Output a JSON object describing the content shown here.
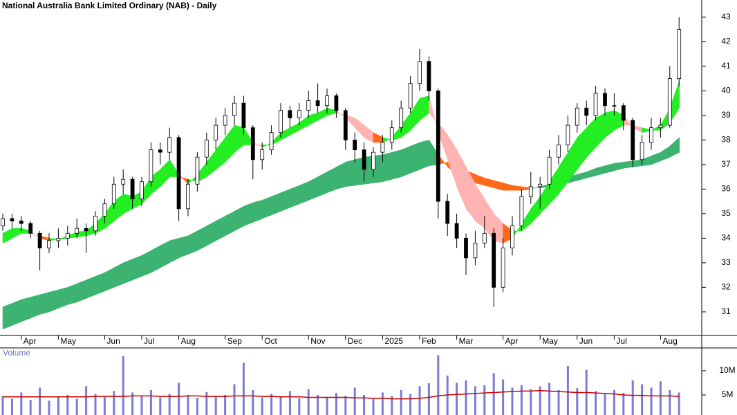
{
  "chart_data": [
    {
      "type": "candlestick",
      "title": "National Australia Bank Limited Ordinary (NAB) - Daily",
      "categories": [
        null,
        null,
        "Apr",
        null,
        null,
        null,
        "May",
        null,
        null,
        null,
        null,
        "Jun",
        null,
        null,
        null,
        "Jul",
        null,
        null,
        null,
        "Aug",
        null,
        null,
        null,
        null,
        "Sep",
        null,
        null,
        null,
        "Oct",
        null,
        null,
        null,
        null,
        "Nov",
        null,
        null,
        null,
        "Dec",
        null,
        null,
        null,
        "2025",
        null,
        null,
        null,
        "Feb",
        null,
        null,
        null,
        "Mar",
        null,
        null,
        null,
        null,
        "Apr",
        null,
        null,
        null,
        "May",
        null,
        null,
        null,
        "Jun",
        null,
        null,
        null,
        "Jul",
        null,
        null,
        null,
        null,
        "Aug",
        null,
        null
      ],
      "ohlc": [
        [
          34.5,
          35.0,
          34.3,
          34.8
        ],
        [
          34.8,
          35.0,
          34.4,
          34.7
        ],
        [
          34.7,
          34.9,
          34.3,
          34.6
        ],
        [
          34.6,
          34.7,
          34.0,
          34.2
        ],
        [
          34.2,
          34.3,
          32.7,
          33.6
        ],
        [
          33.6,
          34.2,
          33.4,
          33.9
        ],
        [
          33.9,
          34.4,
          33.6,
          34.0
        ],
        [
          34.0,
          34.5,
          33.7,
          34.2
        ],
        [
          34.2,
          34.8,
          34.0,
          34.4
        ],
        [
          34.4,
          34.6,
          33.4,
          34.3
        ],
        [
          34.3,
          35.1,
          34.1,
          34.9
        ],
        [
          34.9,
          35.6,
          34.6,
          35.4
        ],
        [
          35.4,
          36.5,
          35.2,
          36.2
        ],
        [
          36.2,
          36.8,
          35.8,
          36.4
        ],
        [
          36.4,
          36.5,
          35.2,
          35.6
        ],
        [
          35.6,
          36.5,
          35.3,
          36.3
        ],
        [
          36.3,
          37.9,
          36.1,
          37.6
        ],
        [
          37.6,
          37.9,
          37.0,
          37.5
        ],
        [
          37.5,
          38.5,
          37.2,
          38.1
        ],
        [
          38.1,
          38.2,
          34.7,
          35.2
        ],
        [
          35.2,
          36.4,
          34.9,
          36.2
        ],
        [
          36.2,
          37.5,
          35.9,
          37.3
        ],
        [
          37.3,
          38.3,
          37.0,
          38.0
        ],
        [
          38.0,
          38.9,
          37.6,
          38.6
        ],
        [
          38.6,
          39.3,
          38.2,
          39.0
        ],
        [
          39.0,
          39.8,
          38.6,
          39.5
        ],
        [
          39.5,
          39.8,
          38.2,
          38.5
        ],
        [
          38.5,
          38.6,
          36.4,
          37.2
        ],
        [
          37.2,
          37.9,
          36.8,
          37.6
        ],
        [
          37.6,
          38.6,
          37.4,
          38.3
        ],
        [
          38.3,
          39.5,
          38.1,
          39.2
        ],
        [
          39.2,
          39.4,
          38.5,
          38.9
        ],
        [
          38.9,
          39.5,
          38.6,
          39.2
        ],
        [
          39.2,
          40.0,
          38.9,
          39.6
        ],
        [
          39.6,
          40.3,
          39.1,
          39.4
        ],
        [
          39.4,
          40.1,
          39.1,
          39.8
        ],
        [
          39.8,
          39.9,
          38.9,
          39.2
        ],
        [
          39.2,
          39.3,
          37.6,
          38.0
        ],
        [
          38.0,
          38.3,
          37.1,
          37.6
        ],
        [
          37.6,
          37.9,
          36.3,
          36.8
        ],
        [
          36.8,
          37.7,
          36.5,
          37.5
        ],
        [
          37.5,
          38.2,
          37.1,
          37.9
        ],
        [
          37.9,
          38.8,
          37.6,
          38.5
        ],
        [
          38.5,
          39.6,
          38.3,
          39.3
        ],
        [
          39.3,
          40.6,
          39.1,
          40.3
        ],
        [
          40.3,
          41.7,
          40.0,
          41.2
        ],
        [
          41.2,
          41.4,
          39.6,
          40.0
        ],
        [
          40.0,
          40.1,
          34.8,
          35.5
        ],
        [
          35.5,
          35.8,
          34.1,
          34.6
        ],
        [
          34.6,
          35.0,
          33.6,
          34.0
        ],
        [
          34.0,
          34.2,
          32.5,
          33.2
        ],
        [
          33.2,
          34.3,
          32.9,
          33.8
        ],
        [
          33.8,
          34.9,
          33.6,
          34.2
        ],
        [
          34.2,
          34.4,
          31.2,
          32.0
        ],
        [
          32.0,
          34.0,
          31.8,
          33.6
        ],
        [
          33.6,
          34.9,
          33.3,
          34.5
        ],
        [
          34.5,
          36.0,
          34.3,
          35.7
        ],
        [
          35.7,
          36.7,
          35.4,
          36.1
        ],
        [
          36.1,
          36.5,
          35.2,
          36.2
        ],
        [
          36.2,
          37.6,
          36.0,
          37.3
        ],
        [
          37.3,
          38.2,
          37.0,
          37.8
        ],
        [
          37.8,
          39.0,
          37.5,
          38.6
        ],
        [
          38.6,
          39.5,
          38.3,
          39.3
        ],
        [
          39.3,
          39.6,
          38.6,
          39.0
        ],
        [
          39.0,
          40.2,
          38.8,
          39.9
        ],
        [
          39.9,
          40.1,
          39.0,
          39.4
        ],
        [
          39.4,
          39.9,
          39.0,
          39.4
        ],
        [
          39.4,
          39.5,
          38.4,
          38.8
        ],
        [
          38.8,
          38.9,
          36.9,
          37.2
        ],
        [
          37.2,
          38.2,
          37.0,
          37.9
        ],
        [
          37.9,
          38.9,
          37.6,
          38.5
        ],
        [
          38.5,
          38.9,
          38.1,
          38.6
        ],
        [
          38.6,
          41.0,
          38.5,
          40.5
        ],
        [
          40.5,
          43.0,
          40.2,
          42.5
        ]
      ],
      "bands": [
        {
          "fast": [
            31.2,
            31.35,
            31.5,
            31.6,
            31.7,
            31.8,
            31.9,
            32.0,
            32.15,
            32.3,
            32.45,
            32.6,
            32.8,
            33.0,
            33.15,
            33.3,
            33.5,
            33.7,
            33.9,
            34.0,
            34.1,
            34.3,
            34.5,
            34.7,
            34.9,
            35.1,
            35.3,
            35.45,
            35.55,
            35.7,
            35.85,
            36.0,
            36.15,
            36.3,
            36.5,
            36.7,
            36.9,
            37.1,
            37.2,
            37.3,
            37.35,
            37.4,
            37.5,
            37.6,
            37.75,
            37.9,
            38.0,
            37.4,
            36.9,
            36.6,
            36.4,
            36.25,
            36.15,
            36.05,
            35.95,
            35.95,
            35.95,
            36.0,
            36.1,
            36.2,
            36.35,
            36.5,
            36.6,
            36.7,
            36.85,
            36.95,
            37.05,
            37.1,
            37.15,
            37.2,
            37.35,
            37.5,
            37.75,
            38.1
          ],
          "slow": [
            30.3,
            30.45,
            30.6,
            30.75,
            30.9,
            31.0,
            31.15,
            31.3,
            31.4,
            31.55,
            31.7,
            31.85,
            32.0,
            32.15,
            32.3,
            32.45,
            32.6,
            32.8,
            33.0,
            33.2,
            33.35,
            33.5,
            33.7,
            33.9,
            34.1,
            34.3,
            34.5,
            34.65,
            34.8,
            34.95,
            35.1,
            35.25,
            35.4,
            35.55,
            35.7,
            35.85,
            36.0,
            36.1,
            36.15,
            36.2,
            36.25,
            36.3,
            36.4,
            36.5,
            36.65,
            36.8,
            36.95,
            37.0,
            37.1,
            36.9,
            36.75,
            36.6,
            36.45,
            36.35,
            36.25,
            36.15,
            36.1,
            36.05,
            36.05,
            36.1,
            36.15,
            36.25,
            36.35,
            36.45,
            36.55,
            36.65,
            36.75,
            36.85,
            36.9,
            36.95,
            37.0,
            37.15,
            37.3,
            37.5
          ],
          "up_color": "#3cb371",
          "down_color": "#ff6a1a"
        },
        {
          "fast": [
            34.2,
            34.4,
            34.4,
            34.3,
            34.0,
            33.9,
            33.95,
            34.1,
            34.25,
            34.3,
            34.6,
            35.0,
            35.5,
            35.8,
            35.7,
            35.9,
            36.5,
            36.8,
            37.2,
            36.6,
            36.2,
            36.6,
            37.1,
            37.6,
            38.1,
            38.6,
            38.5,
            37.9,
            37.7,
            37.9,
            38.3,
            38.5,
            38.7,
            39.0,
            39.1,
            39.3,
            39.2,
            38.9,
            38.5,
            38.1,
            37.9,
            37.9,
            38.1,
            38.6,
            39.1,
            39.7,
            39.8,
            38.3,
            37.2,
            36.1,
            35.2,
            34.7,
            34.4,
            33.9,
            33.8,
            34.0,
            34.6,
            35.2,
            35.7,
            36.3,
            36.9,
            37.5,
            38.1,
            38.5,
            38.9,
            39.1,
            39.2,
            39.0,
            38.5,
            38.3,
            38.4,
            38.6,
            39.3,
            40.4
          ],
          "slow": [
            33.8,
            34.0,
            34.2,
            34.2,
            34.1,
            34.0,
            33.95,
            34.0,
            34.05,
            34.1,
            34.2,
            34.4,
            34.7,
            35.0,
            35.2,
            35.4,
            35.8,
            36.1,
            36.5,
            36.5,
            36.4,
            36.3,
            36.5,
            36.8,
            37.1,
            37.5,
            37.8,
            37.8,
            37.8,
            37.8,
            38.0,
            38.2,
            38.4,
            38.6,
            38.8,
            39.0,
            39.1,
            39.0,
            38.9,
            38.6,
            38.3,
            38.1,
            38.0,
            38.1,
            38.4,
            38.8,
            39.1,
            38.7,
            38.2,
            37.6,
            36.9,
            36.2,
            35.6,
            35.0,
            34.6,
            34.3,
            34.3,
            34.6,
            35.0,
            35.4,
            35.8,
            36.3,
            36.8,
            37.3,
            37.7,
            38.1,
            38.4,
            38.6,
            38.6,
            38.5,
            38.4,
            38.4,
            38.7,
            39.3
          ],
          "up_color": "#22ee22",
          "down_color": "#ff6a1a",
          "weak_color": "#ffb3b3"
        }
      ],
      "ylim": [
        30.04,
        43.7
      ],
      "yticks": [
        31,
        32,
        33,
        34,
        35,
        36,
        37,
        38,
        39,
        40,
        41,
        42,
        43
      ]
    },
    {
      "type": "bar",
      "title": "Volume",
      "color": "#7b7bd6",
      "values": [
        4.8,
        4.2,
        5.5,
        4.0,
        6.5,
        3.8,
        4.5,
        5.0,
        4.2,
        6.8,
        5.2,
        4.6,
        5.8,
        13.0,
        5.5,
        4.8,
        6.0,
        4.5,
        5.2,
        7.5,
        5.0,
        4.4,
        5.6,
        4.8,
        5.0,
        7.2,
        11.6,
        6.0,
        4.5,
        5.2,
        4.6,
        5.8,
        4.3,
        6.2,
        5.0,
        4.6,
        5.4,
        4.8,
        6.5,
        5.0,
        4.2,
        5.5,
        4.8,
        6.0,
        5.2,
        6.8,
        7.4,
        13.2,
        9.0,
        7.5,
        8.0,
        6.8,
        7.0,
        9.5,
        8.2,
        6.5,
        7.0,
        6.2,
        6.8,
        7.5,
        6.0,
        11.0,
        6.4,
        10.2,
        5.8,
        5.2,
        6.0,
        5.4,
        8.0,
        7.2,
        6.5,
        7.8,
        6.0,
        5.5
      ],
      "average": {
        "color": "#cc0000",
        "values": [
          4.6,
          4.6,
          4.6,
          4.6,
          4.6,
          4.6,
          4.6,
          4.6,
          4.6,
          4.6,
          4.7,
          4.7,
          4.7,
          4.7,
          4.8,
          4.8,
          4.8,
          4.7,
          4.7,
          4.7,
          4.8,
          4.8,
          4.7,
          4.7,
          4.7,
          4.8,
          4.8,
          4.8,
          4.7,
          4.7,
          4.6,
          4.6,
          4.6,
          4.5,
          4.5,
          4.5,
          4.5,
          4.5,
          4.4,
          4.4,
          4.3,
          4.3,
          4.2,
          4.2,
          4.2,
          4.3,
          4.5,
          4.8,
          5.0,
          5.1,
          5.2,
          5.3,
          5.4,
          5.5,
          5.6,
          5.7,
          5.8,
          5.8,
          5.9,
          5.8,
          5.7,
          5.6,
          5.5,
          5.5,
          5.4,
          5.3,
          5.2,
          5.0,
          4.9,
          4.9,
          4.8,
          4.8,
          4.8,
          4.7
        ]
      },
      "ylim": [
        0.86,
        14.7
      ],
      "yticks": [
        {
          "value": 5,
          "label": "5M"
        },
        {
          "value": 10,
          "label": "10M"
        }
      ]
    }
  ]
}
